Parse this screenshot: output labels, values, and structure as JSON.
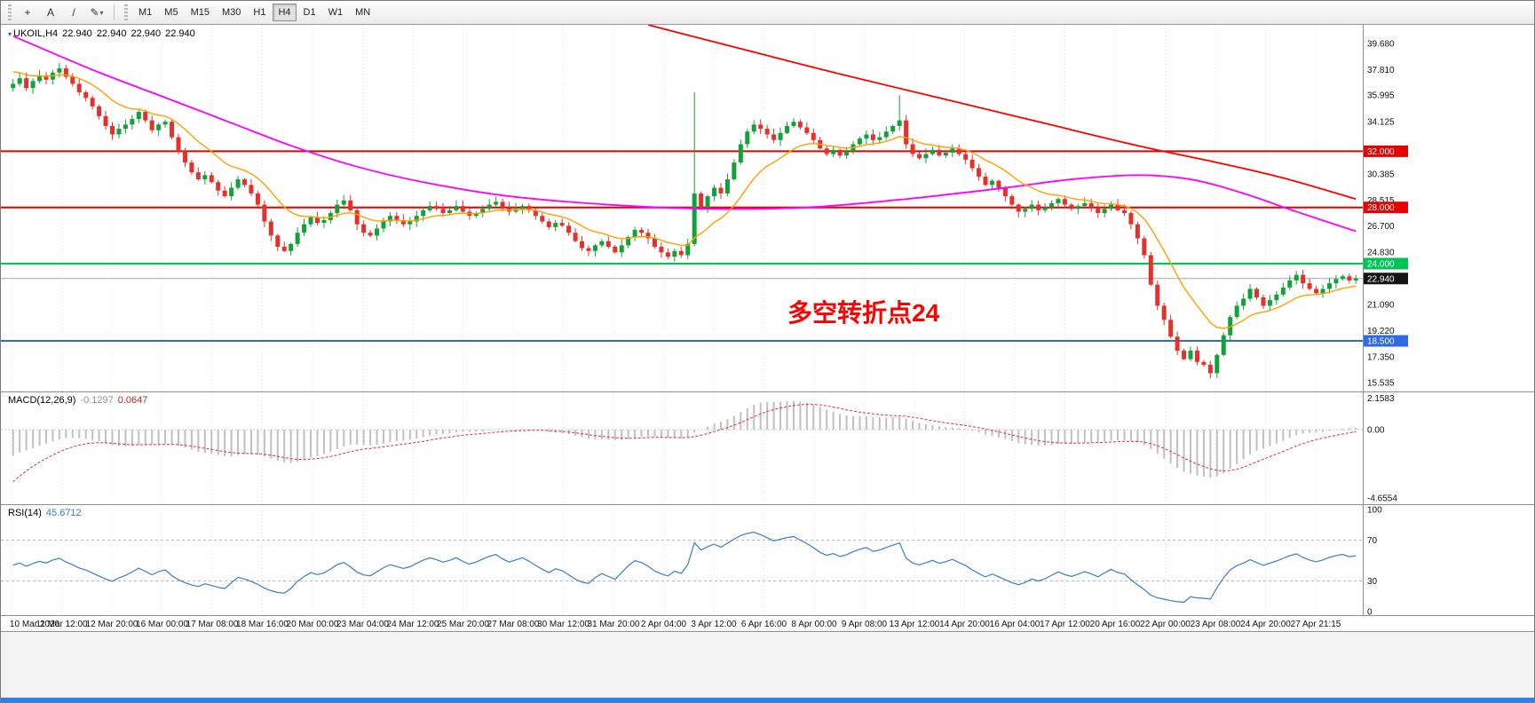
{
  "toolbar": {
    "tools": [
      {
        "name": "crosshair",
        "glyph": "+"
      },
      {
        "name": "text-label",
        "glyph": "A"
      },
      {
        "name": "trendline",
        "glyph": "/"
      },
      {
        "name": "draw-tools",
        "glyph": "✎"
      }
    ],
    "dropdown_caret": "▾",
    "timeframes": [
      "M1",
      "M5",
      "M15",
      "M30",
      "H1",
      "H4",
      "D1",
      "W1",
      "MN"
    ],
    "active_timeframe": "H4"
  },
  "chart_header": {
    "marker": "▾",
    "symbol_period": "UKOIL,H4",
    "open": "22.940",
    "high": "22.940",
    "low": "22.940",
    "close": "22.940"
  },
  "chart_data": {
    "type": "candlestick",
    "symbol": "UKOIL",
    "period": "H4",
    "price_range": {
      "min": 14.9,
      "max": 41.0
    },
    "first_open": 36.5,
    "closes": [
      36.8,
      37.2,
      36.5,
      37.0,
      37.4,
      37.1,
      37.6,
      37.9,
      37.3,
      36.8,
      36.2,
      35.8,
      35.2,
      34.5,
      33.8,
      33.2,
      33.6,
      33.9,
      34.3,
      34.8,
      34.2,
      33.5,
      33.9,
      34.1,
      33.0,
      32.0,
      31.2,
      30.5,
      30.0,
      30.3,
      29.8,
      29.2,
      28.8,
      29.4,
      30.0,
      29.6,
      29.0,
      28.2,
      27.0,
      26.0,
      25.2,
      24.9,
      25.4,
      26.2,
      26.8,
      27.3,
      26.9,
      27.1,
      27.6,
      28.2,
      28.5,
      27.8,
      26.8,
      26.2,
      26.0,
      26.5,
      27.0,
      27.4,
      27.1,
      26.8,
      27.0,
      27.4,
      27.8,
      28.1,
      27.9,
      27.6,
      27.8,
      28.1,
      27.7,
      27.4,
      27.6,
      27.9,
      28.2,
      28.4,
      28.0,
      27.7,
      27.9,
      28.1,
      27.8,
      27.4,
      27.0,
      26.6,
      26.9,
      26.7,
      26.2,
      25.6,
      25.1,
      24.9,
      25.3,
      25.6,
      25.2,
      24.8,
      25.3,
      25.9,
      26.4,
      26.2,
      25.8,
      25.2,
      24.8,
      24.5,
      24.9,
      24.6,
      25.4,
      29.0,
      28.0,
      28.8,
      29.4,
      29.0,
      30.0,
      31.2,
      32.5,
      33.4,
      33.9,
      33.6,
      33.2,
      32.8,
      33.3,
      33.8,
      34.1,
      33.7,
      33.3,
      32.8,
      32.2,
      31.8,
      32.1,
      31.7,
      32.0,
      32.5,
      32.9,
      33.2,
      32.8,
      33.0,
      33.4,
      33.8,
      34.2,
      32.5,
      31.8,
      31.5,
      31.8,
      32.1,
      31.7,
      31.9,
      32.2,
      31.8,
      31.4,
      30.8,
      30.2,
      29.6,
      29.9,
      29.4,
      28.8,
      28.2,
      27.7,
      27.9,
      28.2,
      27.8,
      28.0,
      28.3,
      28.6,
      28.2,
      27.9,
      28.1,
      28.3,
      28.0,
      27.6,
      27.9,
      28.2,
      27.8,
      27.6,
      26.8,
      25.8,
      24.6,
      22.5,
      21.0,
      20.0,
      18.8,
      17.8,
      17.2,
      17.8,
      17.0,
      16.8,
      16.2,
      17.5,
      18.9,
      20.2,
      21.0,
      21.5,
      22.2,
      21.6,
      21.0,
      21.4,
      21.8,
      22.3,
      22.8,
      23.2,
      22.6,
      22.2,
      21.9,
      22.2,
      22.6,
      22.9,
      23.1,
      22.8,
      22.94
    ],
    "special_wicks": {
      "7": {
        "high": 38.3
      },
      "103": {
        "high": 36.2
      },
      "134": {
        "high": 36.0
      },
      "181": {
        "low": 15.98
      },
      "194": {
        "high": 23.5
      }
    },
    "colors": {
      "up": "#14a03c",
      "down": "#e5312b"
    },
    "price_ticks": [
      {
        "label": "39.680",
        "price": 39.68
      },
      {
        "label": "37.810",
        "price": 37.81
      },
      {
        "label": "35.995",
        "price": 35.995
      },
      {
        "label": "34.125",
        "price": 34.125
      },
      {
        "label": "30.385",
        "price": 30.385
      },
      {
        "label": "28.515",
        "price": 28.515
      },
      {
        "label": "26.700",
        "price": 26.7
      },
      {
        "label": "24.830",
        "price": 24.83
      },
      {
        "label": "21.090",
        "price": 21.09
      },
      {
        "label": "19.220",
        "price": 19.22
      },
      {
        "label": "17.350",
        "price": 17.35
      },
      {
        "label": "15.535",
        "price": 15.535
      }
    ],
    "levels": [
      {
        "label": "32.000",
        "price": 32.0,
        "color": "#e60000",
        "width": 2
      },
      {
        "label": "28.000",
        "price": 28.0,
        "color": "#e60000",
        "width": 2
      },
      {
        "label": "24.000",
        "price": 24.0,
        "color": "#00c455",
        "width": 2
      },
      {
        "label": "22.940",
        "price": 22.94,
        "color": "#141414",
        "line_color": "#a8a8a8",
        "width": 1
      },
      {
        "label": "18.500",
        "price": 18.5,
        "color": "#2d6ae3",
        "width": 2
      }
    ],
    "moving_averages": {
      "fast": {
        "type": "ema",
        "period": 13,
        "seed_offset": 1.0,
        "color": "#ffa200",
        "width": 1.4
      },
      "mid": {
        "color": "#ff00ff",
        "width": 1.8,
        "anchors": [
          [
            0,
            40.2
          ],
          [
            12,
            37.8
          ],
          [
            22,
            36.0
          ],
          [
            32,
            34.2
          ],
          [
            42,
            32.4
          ],
          [
            52,
            30.9
          ],
          [
            62,
            29.8
          ],
          [
            75,
            28.8
          ],
          [
            90,
            28.2
          ],
          [
            105,
            27.9
          ],
          [
            120,
            28.0
          ],
          [
            135,
            28.6
          ],
          [
            150,
            29.4
          ],
          [
            160,
            30.0
          ],
          [
            170,
            30.3
          ],
          [
            178,
            30.0
          ],
          [
            186,
            29.0
          ],
          [
            194,
            27.7
          ],
          [
            203,
            26.3
          ]
        ]
      },
      "slow": {
        "color": "#ff0000",
        "width": 1.8,
        "anchors": [
          [
            96,
            41.0
          ],
          [
            110,
            39.3
          ],
          [
            125,
            37.5
          ],
          [
            140,
            35.8
          ],
          [
            155,
            34.1
          ],
          [
            170,
            32.4
          ],
          [
            182,
            31.2
          ],
          [
            192,
            30.1
          ],
          [
            203,
            28.6
          ]
        ]
      }
    },
    "macd": {
      "params": "MACD(12,26,9)",
      "value_main": "-0.1297",
      "value_signal": "0.0647",
      "seeds": {
        "ema12_offset": -0.9,
        "ema26_offset": 1.1,
        "signal_start": -4.0
      },
      "view_max": 2.55,
      "view_min": -5.08,
      "scale": [
        {
          "label": "2.1583",
          "value": 2.1583
        },
        {
          "label": "0.00",
          "value": 0
        },
        {
          "label": "-4.6554",
          "value": -4.6554
        }
      ],
      "histogram_color": "#c0c0c0",
      "signal_color": "#e03030"
    },
    "rsi": {
      "params": "RSI(14)",
      "value": "45.6712",
      "seeds": {
        "avg_gain": 0.35,
        "avg_loss": 0.42
      },
      "levels": [
        70,
        30
      ],
      "scale": [
        {
          "label": "100",
          "value": 100
        },
        {
          "label": "70",
          "value": 70
        },
        {
          "label": "30",
          "value": 30
        },
        {
          "label": "0",
          "value": 0
        }
      ],
      "color": "#3b7cc4"
    },
    "time_labels": [
      "10 Mar 2020",
      "11 Mar 12:00",
      "12 Mar 20:00",
      "16 Mar 00:00",
      "17 Mar 08:00",
      "18 Mar 16:00",
      "20 Mar 00:00",
      "23 Mar 04:00",
      "24 Mar 12:00",
      "25 Mar 20:00",
      "27 Mar 08:00",
      "30 Mar 12:00",
      "31 Mar 20:00",
      "2 Apr 04:00",
      "3 Apr 12:00",
      "6 Apr 16:00",
      "8 Apr 00:00",
      "9 Apr 08:00",
      "13 Apr 12:00",
      "14 Apr 20:00",
      "16 Apr 04:00",
      "17 Apr 12:00",
      "20 Apr 16:00",
      "22 Apr 00:00",
      "23 Apr 08:00",
      "24 Apr 20:00",
      "27 Apr 21:15"
    ],
    "annotation": {
      "text": "多空转折点24",
      "color": "#fe0000"
    }
  }
}
